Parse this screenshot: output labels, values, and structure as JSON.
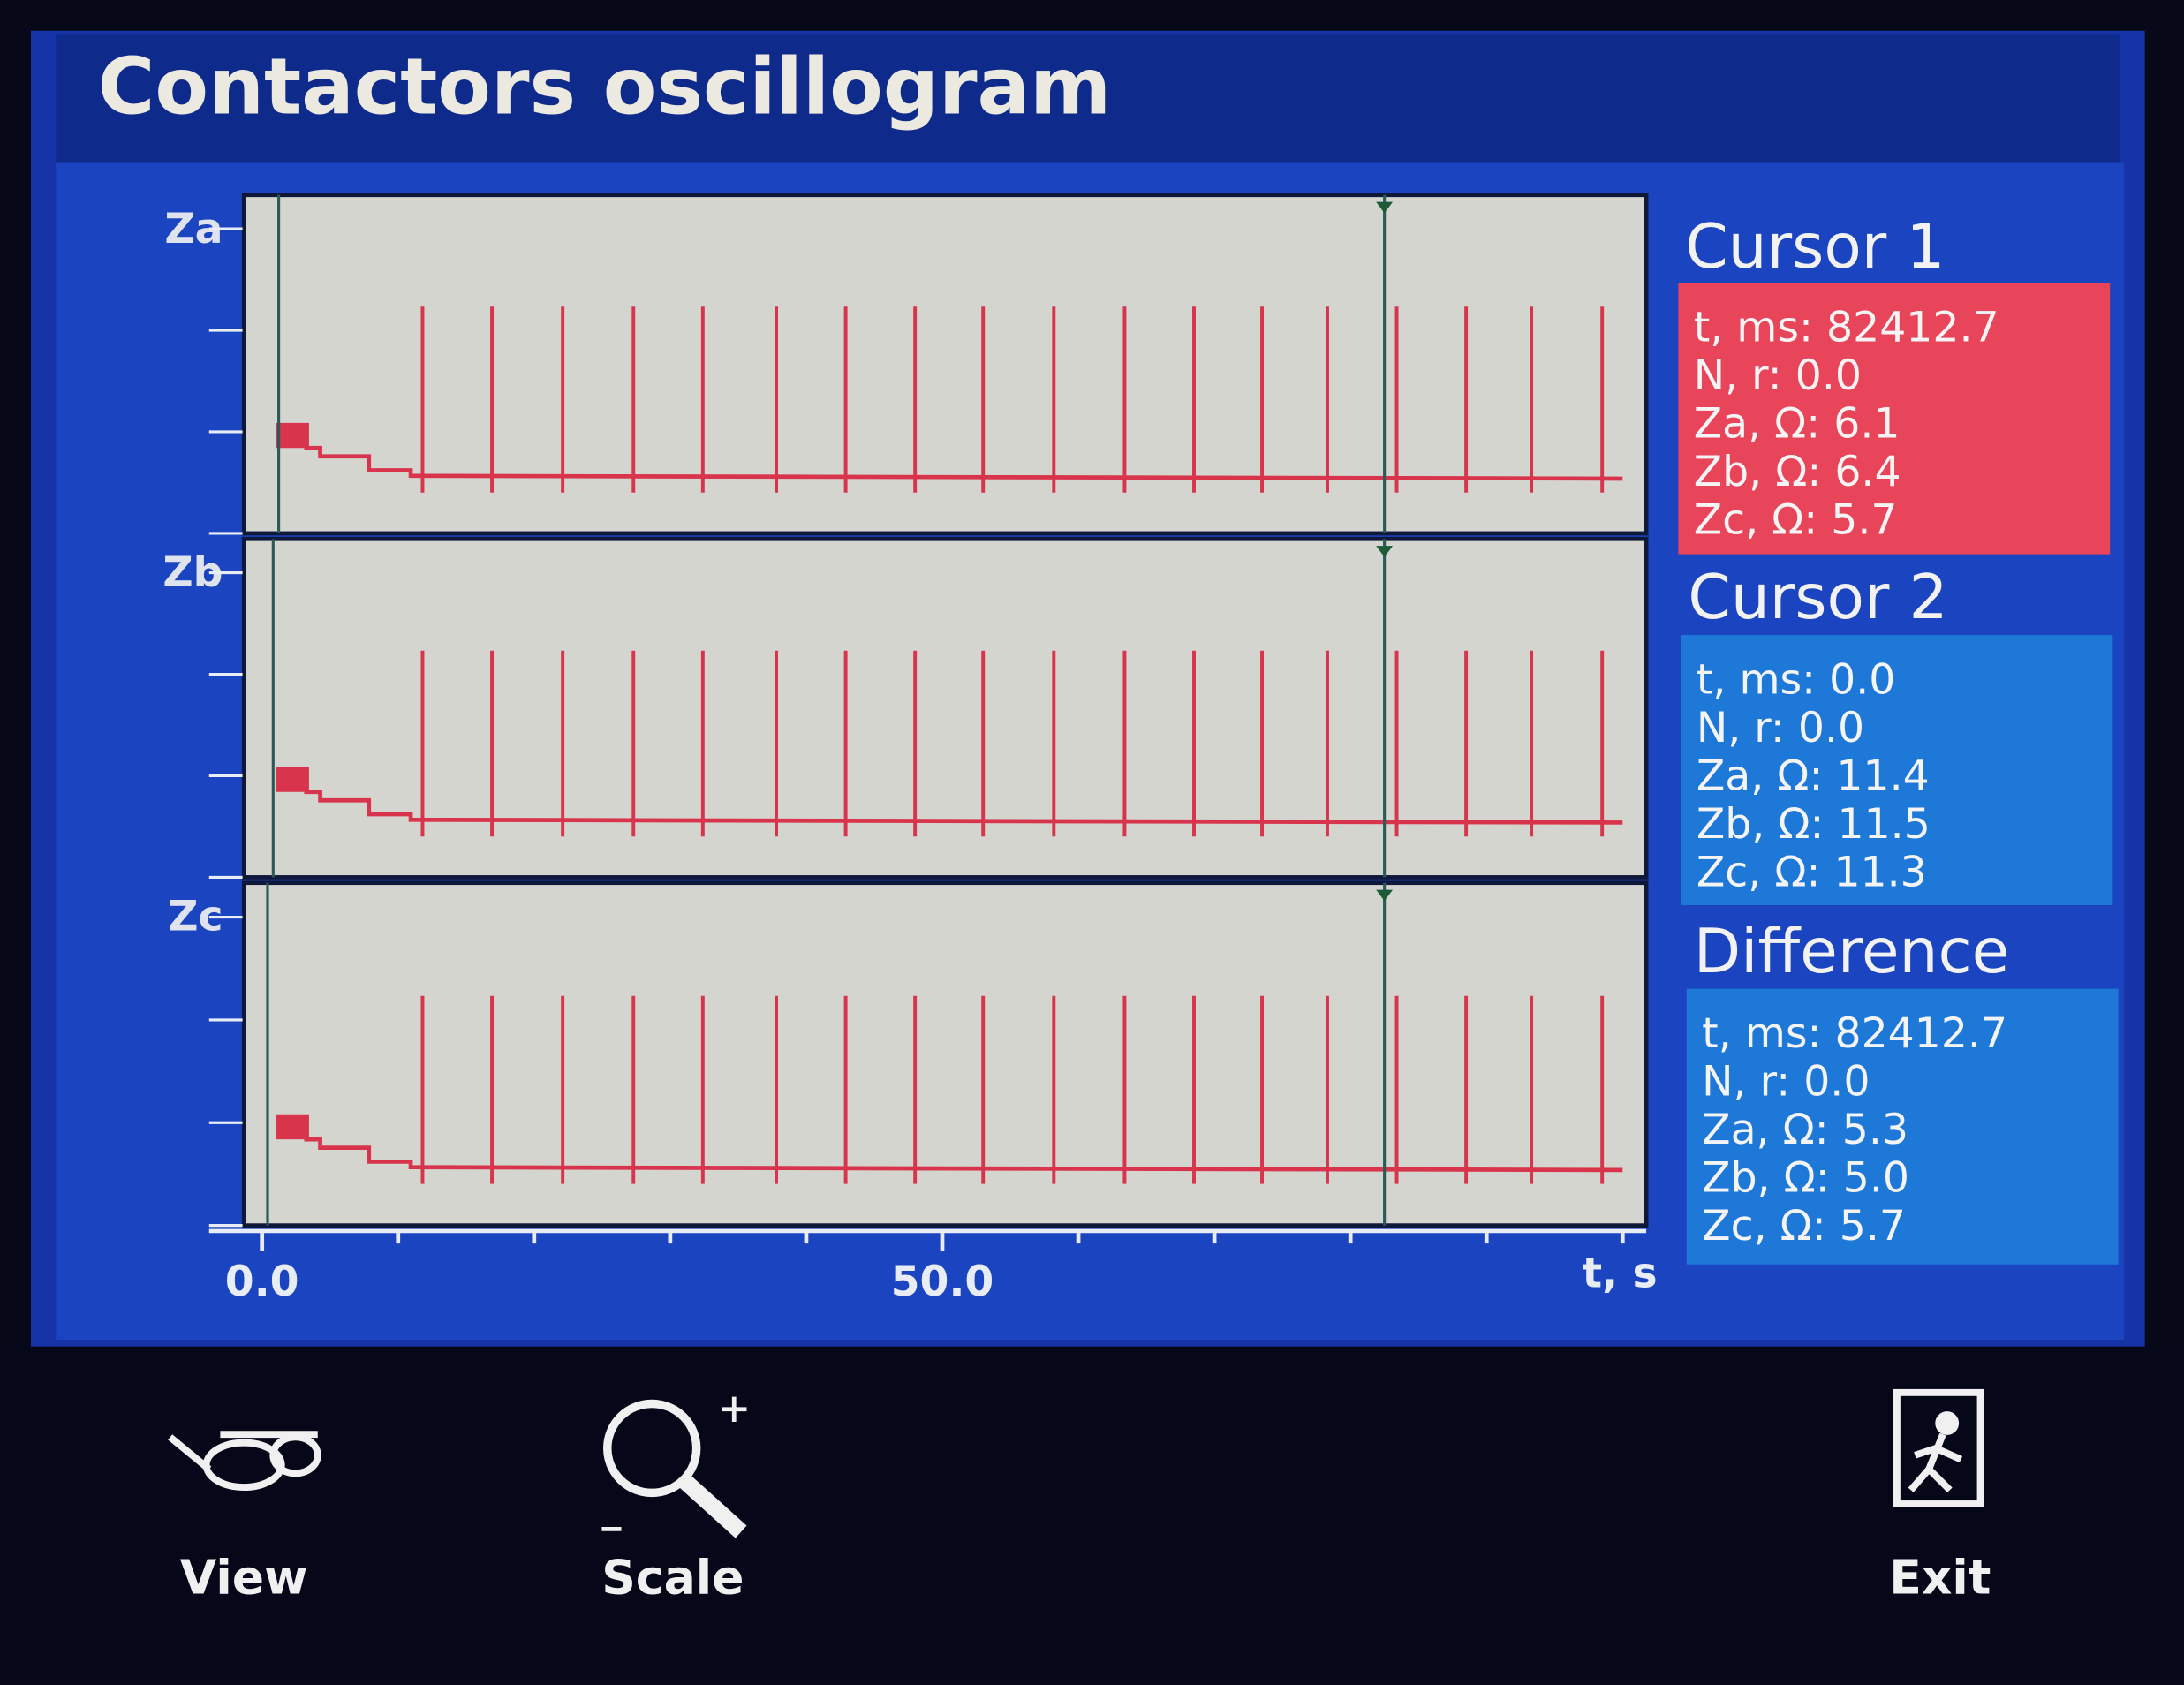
{
  "header": {
    "title": "Contactors oscillogram"
  },
  "plot": {
    "channels": [
      "Za",
      "Zb",
      "Zc"
    ],
    "xlim": [
      -1.3,
      101.5
    ],
    "xticks": [
      {
        "value": 0,
        "label": "0.0"
      },
      {
        "value": 50,
        "label": "50.0"
      }
    ],
    "xticks_minor": [
      10,
      20,
      30,
      40,
      60,
      70,
      80,
      90,
      100
    ],
    "x_label": "t, s",
    "spikes": [
      11.8,
      16.9,
      22.1,
      27.3,
      32.4,
      37.8,
      42.9,
      48.0,
      53.0,
      58.2,
      63.4,
      68.5,
      73.5,
      78.3,
      83.4,
      88.5,
      93.3,
      98.5
    ],
    "color": "#d8344c"
  },
  "panels": [
    {
      "title": "Cursor 1",
      "color": "#e8445a",
      "rows": [
        {
          "label": "t, ms:",
          "value": "82412.7"
        },
        {
          "label": "N, r:",
          "value": "0.0"
        },
        {
          "label": "Za, Ω:",
          "value": "6.1"
        },
        {
          "label": "Zb, Ω:",
          "value": "6.4"
        },
        {
          "label": "Zc, Ω:",
          "value": "5.7"
        }
      ]
    },
    {
      "title": "Cursor 2",
      "color": "#1e78d8",
      "rows": [
        {
          "label": "t, ms:",
          "value": "0.0"
        },
        {
          "label": "N, r:",
          "value": "0.0"
        },
        {
          "label": "Za, Ω:",
          "value": "11.4"
        },
        {
          "label": "Zb, Ω:",
          "value": "11.5"
        },
        {
          "label": "Zc, Ω:",
          "value": "11.3"
        }
      ]
    },
    {
      "title": "Difference",
      "color": "#1e78d8",
      "rows": [
        {
          "label": "t, ms:",
          "value": "82412.7"
        },
        {
          "label": "N, r:",
          "value": "0.0"
        },
        {
          "label": "Za, Ω:",
          "value": "5.3"
        },
        {
          "label": "Zb, Ω:",
          "value": "5.0"
        },
        {
          "label": "Zc, Ω:",
          "value": "5.7"
        }
      ]
    }
  ],
  "buttons": [
    "View",
    "Scale",
    "Exit"
  ]
}
